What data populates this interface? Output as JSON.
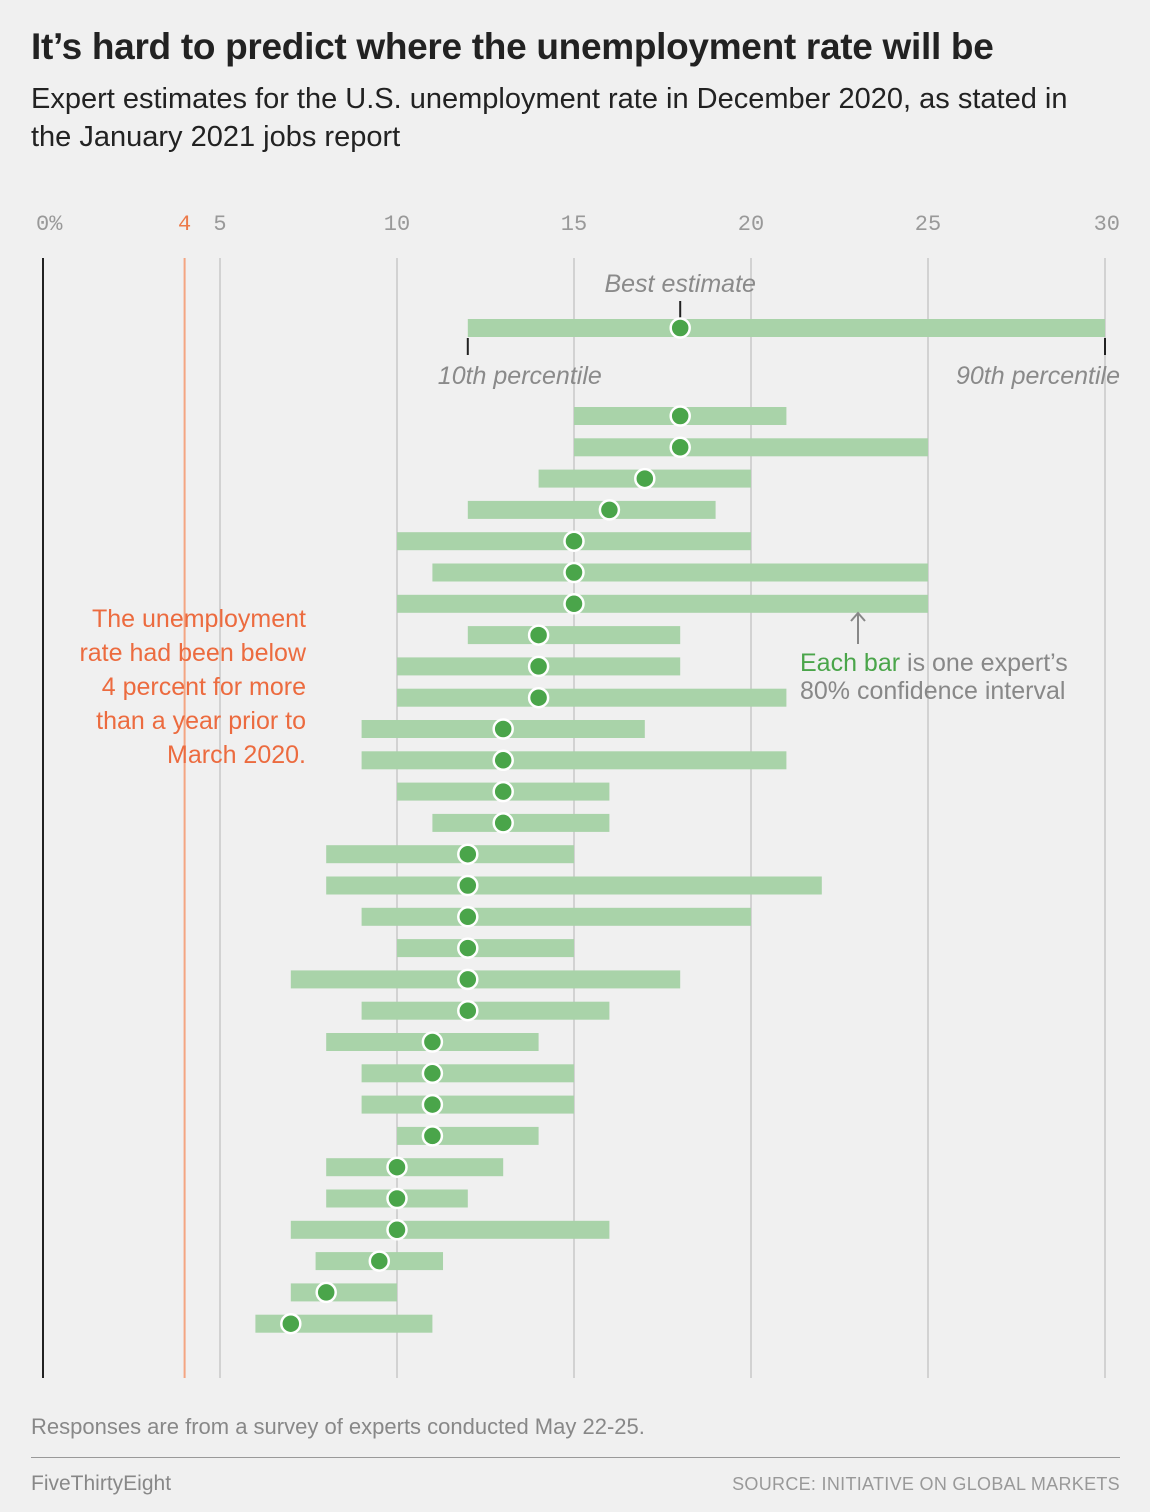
{
  "header": {
    "title": "It’s hard to predict where the unemployment rate will be",
    "subtitle": "Expert estimates for the U.S. unemployment rate in December 2020, as stated in the January 2021 jobs report"
  },
  "annotations": {
    "reference_note_lines": [
      "The unemployment",
      "rate had been below",
      "4 percent for more",
      "than a year prior to",
      "March 2020."
    ],
    "callout_highlight": "Each bar",
    "callout_rest_line1": " is one expert’s",
    "callout_line2": "80% confidence interval",
    "key_best": "Best estimate",
    "key_p10": "10th percentile",
    "key_p90": "90th percentile"
  },
  "footer": {
    "note": "Responses are from a survey of experts conducted May 22-25.",
    "brand": "FiveThirtyEight",
    "source": "SOURCE: INITIATIVE ON GLOBAL MARKETS"
  },
  "colors": {
    "bar": "#a9d3a9",
    "dot": "#4aa54a",
    "reference": "#ec7a4a",
    "text": "#222222",
    "muted": "#888888"
  },
  "chart_data": {
    "type": "range-dot",
    "xlim": [
      0,
      30
    ],
    "grid": true,
    "x_ticks": [
      {
        "value": 0,
        "label": "0%"
      },
      {
        "value": 5,
        "label": "5"
      },
      {
        "value": 10,
        "label": "10"
      },
      {
        "value": 15,
        "label": "15"
      },
      {
        "value": 20,
        "label": "20"
      },
      {
        "value": 25,
        "label": "25"
      },
      {
        "value": 30,
        "label": "30"
      }
    ],
    "reference_line": {
      "value": 4,
      "label": "4"
    },
    "key_example": {
      "low": 12,
      "best": 18,
      "high": 30
    },
    "experts": [
      {
        "low": 15,
        "best": 18,
        "high": 21
      },
      {
        "low": 15,
        "best": 18,
        "high": 25
      },
      {
        "low": 14,
        "best": 17,
        "high": 20
      },
      {
        "low": 12,
        "best": 16,
        "high": 19
      },
      {
        "low": 10,
        "best": 15,
        "high": 20
      },
      {
        "low": 11,
        "best": 15,
        "high": 25
      },
      {
        "low": 10,
        "best": 15,
        "high": 25
      },
      {
        "low": 12,
        "best": 14,
        "high": 18
      },
      {
        "low": 10,
        "best": 14,
        "high": 18
      },
      {
        "low": 10,
        "best": 14,
        "high": 21
      },
      {
        "low": 9,
        "best": 13,
        "high": 17
      },
      {
        "low": 9,
        "best": 13,
        "high": 21
      },
      {
        "low": 10,
        "best": 13,
        "high": 16
      },
      {
        "low": 11,
        "best": 13,
        "high": 16
      },
      {
        "low": 8,
        "best": 12,
        "high": 15
      },
      {
        "low": 8,
        "best": 12,
        "high": 22
      },
      {
        "low": 9,
        "best": 12,
        "high": 20
      },
      {
        "low": 10,
        "best": 12,
        "high": 15
      },
      {
        "low": 7,
        "best": 12,
        "high": 18
      },
      {
        "low": 9,
        "best": 12,
        "high": 16
      },
      {
        "low": 8,
        "best": 11,
        "high": 14
      },
      {
        "low": 9,
        "best": 11,
        "high": 15
      },
      {
        "low": 9,
        "best": 11,
        "high": 15
      },
      {
        "low": 10,
        "best": 11,
        "high": 14
      },
      {
        "low": 8,
        "best": 10,
        "high": 13
      },
      {
        "low": 8,
        "best": 10,
        "high": 12
      },
      {
        "low": 7,
        "best": 10,
        "high": 16
      },
      {
        "low": 7.7,
        "best": 9.5,
        "high": 11.3
      },
      {
        "low": 7,
        "best": 8,
        "high": 10
      },
      {
        "low": 6,
        "best": 7,
        "high": 11
      }
    ]
  }
}
